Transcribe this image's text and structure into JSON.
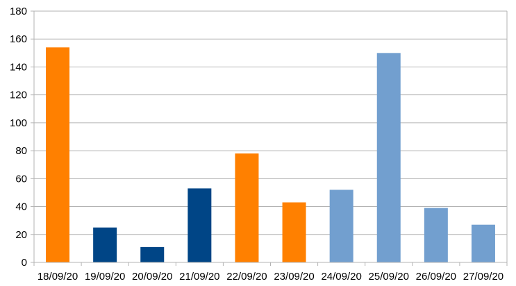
{
  "chart_data": {
    "type": "bar",
    "title": "",
    "xlabel": "",
    "ylabel": "",
    "ylim": [
      0,
      180
    ],
    "yticks": [
      0,
      20,
      40,
      60,
      80,
      100,
      120,
      140,
      160,
      180
    ],
    "grid": true,
    "legend": "none",
    "categories": [
      "18/09/20",
      "19/09/20",
      "20/09/20",
      "21/09/20",
      "22/09/20",
      "23/09/20",
      "24/09/20",
      "25/09/20",
      "26/09/20",
      "27/09/20"
    ],
    "values": [
      154,
      25,
      11,
      53,
      78,
      43,
      52,
      150,
      39,
      27
    ],
    "bar_colors": [
      "#ff8000",
      "#004586",
      "#004586",
      "#004586",
      "#ff8000",
      "#ff8000",
      "#729fcf",
      "#729fcf",
      "#729fcf",
      "#729fcf"
    ],
    "colors": {
      "grid": "#b3b3b3",
      "axis": "#b3b3b3",
      "background": "#ffffff"
    }
  }
}
